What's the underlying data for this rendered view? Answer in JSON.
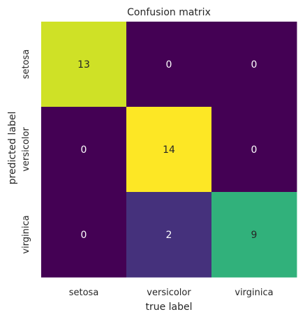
{
  "chart_data": {
    "type": "heatmap",
    "title": "Confusion matrix",
    "xlabel": "true label",
    "ylabel": "predicted label",
    "x_categories": [
      "setosa",
      "versicolor",
      "virginica"
    ],
    "y_categories": [
      "setosa",
      "versicolor",
      "virginica"
    ],
    "values": [
      [
        13,
        0,
        0
      ],
      [
        0,
        14,
        0
      ],
      [
        0,
        2,
        9
      ]
    ],
    "color_range": [
      0,
      14
    ],
    "colormap": "viridis",
    "colorbar": false,
    "annotation_colors": {
      "on_light": "#262626",
      "on_dark": "#ffffff"
    }
  }
}
